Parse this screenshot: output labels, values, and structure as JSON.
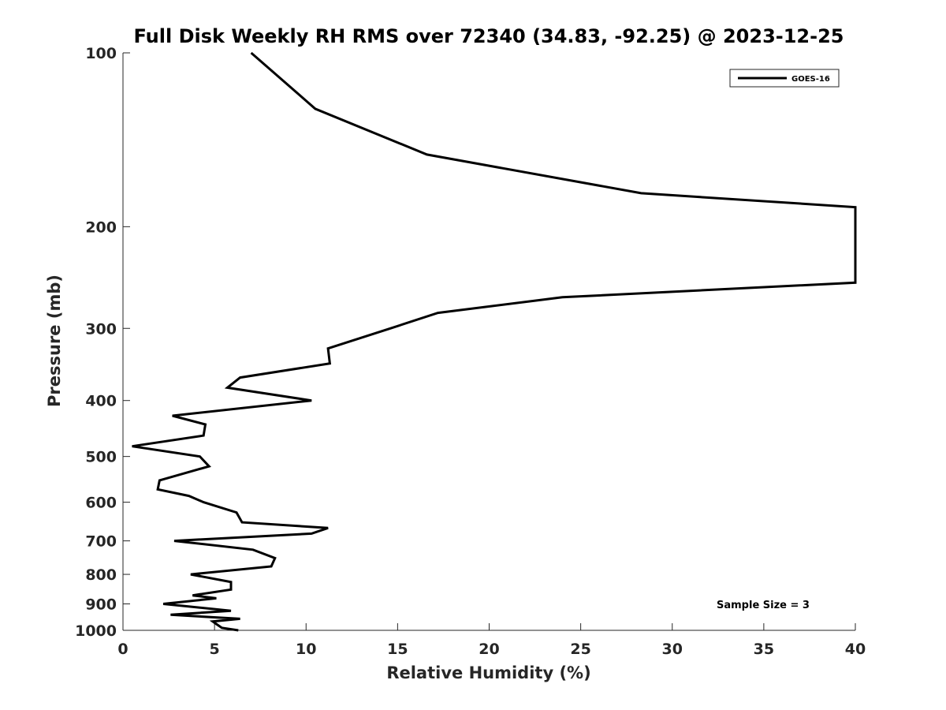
{
  "chart_data": {
    "type": "line",
    "title": "Full Disk Weekly RH RMS over 72340 (34.83, -92.25) @ 2023-12-25",
    "xlabel": "Relative Humidity (%)",
    "ylabel": "Pressure (mb)",
    "xlim": [
      0,
      40
    ],
    "ylim": [
      100,
      1000
    ],
    "yscale": "log",
    "y_reversed": true,
    "grid": false,
    "legend_position": "top-right",
    "x_ticks": [
      0,
      5,
      10,
      15,
      20,
      25,
      30,
      35,
      40
    ],
    "y_ticks": [
      100,
      200,
      300,
      400,
      500,
      600,
      700,
      800,
      900,
      1000
    ],
    "annotation": "Sample Size = 3",
    "series": [
      {
        "name": "GOES-16",
        "color": "#000000",
        "points": [
          [
            7.0,
            100
          ],
          [
            10.5,
            125
          ],
          [
            16.6,
            150
          ],
          [
            28.3,
            175
          ],
          [
            40.0,
            185
          ],
          [
            40.0,
            250
          ],
          [
            24.0,
            265
          ],
          [
            17.2,
            282
          ],
          [
            14.6,
            300
          ],
          [
            11.2,
            325
          ],
          [
            11.3,
            345
          ],
          [
            6.4,
            365
          ],
          [
            5.7,
            380
          ],
          [
            10.3,
            400
          ],
          [
            2.7,
            425
          ],
          [
            4.5,
            440
          ],
          [
            4.4,
            460
          ],
          [
            0.5,
            480
          ],
          [
            4.2,
            500
          ],
          [
            4.7,
            520
          ],
          [
            2.0,
            550
          ],
          [
            1.9,
            570
          ],
          [
            3.6,
            585
          ],
          [
            4.4,
            600
          ],
          [
            6.2,
            625
          ],
          [
            6.5,
            650
          ],
          [
            11.2,
            665
          ],
          [
            10.3,
            680
          ],
          [
            2.8,
            700
          ],
          [
            7.1,
            725
          ],
          [
            8.3,
            750
          ],
          [
            8.1,
            775
          ],
          [
            3.7,
            800
          ],
          [
            5.9,
            825
          ],
          [
            5.9,
            850
          ],
          [
            3.8,
            870
          ],
          [
            5.1,
            880
          ],
          [
            2.2,
            900
          ],
          [
            5.9,
            925
          ],
          [
            2.6,
            940
          ],
          [
            6.4,
            955
          ],
          [
            4.9,
            965
          ],
          [
            5.1,
            975
          ],
          [
            5.4,
            990
          ],
          [
            6.3,
            1000
          ]
        ]
      }
    ]
  }
}
